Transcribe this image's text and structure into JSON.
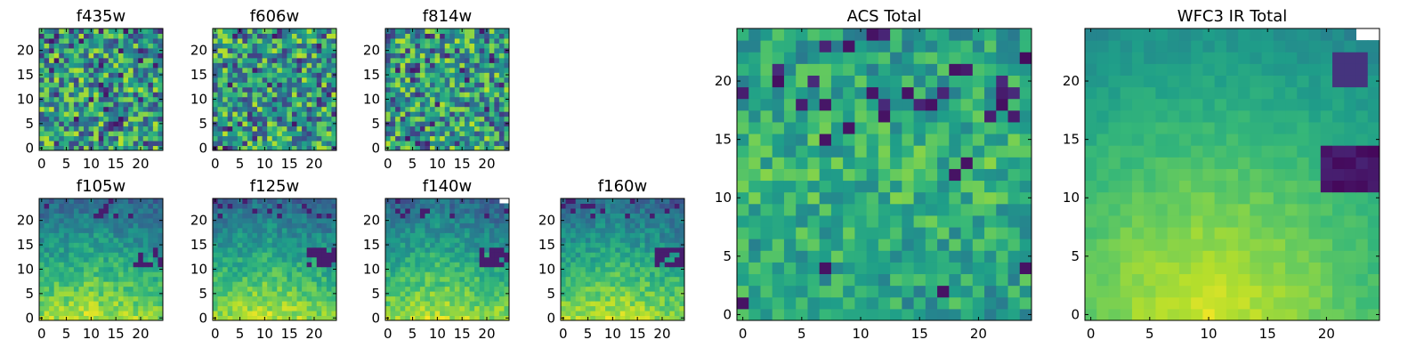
{
  "chart_data": [
    {
      "type": "heatmap",
      "title": "f435w",
      "xlabel": "",
      "ylabel": "",
      "xlim": [
        -0.5,
        24.5
      ],
      "ylim": [
        -0.5,
        24.5
      ],
      "xticks": [
        0,
        5,
        10,
        15,
        20
      ],
      "yticks": [
        0,
        5,
        10,
        15,
        20
      ],
      "colormap": "viridis",
      "pattern": "noise"
    },
    {
      "type": "heatmap",
      "title": "f606w",
      "xlabel": "",
      "ylabel": "",
      "xlim": [
        -0.5,
        24.5
      ],
      "ylim": [
        -0.5,
        24.5
      ],
      "xticks": [
        0,
        5,
        10,
        15,
        20
      ],
      "yticks": [
        0,
        5,
        10,
        15,
        20
      ],
      "colormap": "viridis",
      "pattern": "noise"
    },
    {
      "type": "heatmap",
      "title": "f814w",
      "xlabel": "",
      "ylabel": "",
      "xlim": [
        -0.5,
        24.5
      ],
      "ylim": [
        -0.5,
        24.5
      ],
      "xticks": [
        0,
        5,
        10,
        15,
        20
      ],
      "yticks": [
        0,
        5,
        10,
        15,
        20
      ],
      "colormap": "viridis",
      "pattern": "noise"
    },
    {
      "type": "heatmap",
      "title": "f105w",
      "xlabel": "",
      "ylabel": "",
      "xlim": [
        -0.5,
        24.5
      ],
      "ylim": [
        -0.5,
        24.5
      ],
      "xticks": [
        0,
        5,
        10,
        15,
        20
      ],
      "yticks": [
        0,
        5,
        10,
        15,
        20
      ],
      "colormap": "viridis",
      "pattern": "ir"
    },
    {
      "type": "heatmap",
      "title": "f125w",
      "xlabel": "",
      "ylabel": "",
      "xlim": [
        -0.5,
        24.5
      ],
      "ylim": [
        -0.5,
        24.5
      ],
      "xticks": [
        0,
        5,
        10,
        15,
        20
      ],
      "yticks": [
        0,
        5,
        10,
        15,
        20
      ],
      "colormap": "viridis",
      "pattern": "ir"
    },
    {
      "type": "heatmap",
      "title": "f140w",
      "xlabel": "",
      "ylabel": "",
      "xlim": [
        -0.5,
        24.5
      ],
      "ylim": [
        -0.5,
        24.5
      ],
      "xticks": [
        0,
        5,
        10,
        15,
        20
      ],
      "yticks": [
        0,
        5,
        10,
        15,
        20
      ],
      "colormap": "viridis",
      "pattern": "ir"
    },
    {
      "type": "heatmap",
      "title": "f160w",
      "xlabel": "",
      "ylabel": "",
      "xlim": [
        -0.5,
        24.5
      ],
      "ylim": [
        -0.5,
        24.5
      ],
      "xticks": [
        0,
        5,
        10,
        15,
        20
      ],
      "yticks": [
        0,
        5,
        10,
        15,
        20
      ],
      "colormap": "viridis",
      "pattern": "ir"
    },
    {
      "type": "heatmap",
      "title": "ACS Total",
      "xlabel": "",
      "ylabel": "",
      "xlim": [
        -0.5,
        24.5
      ],
      "ylim": [
        -0.5,
        24.5
      ],
      "xticks": [
        0,
        5,
        10,
        15,
        20
      ],
      "yticks": [
        0,
        5,
        10,
        15,
        20
      ],
      "colormap": "viridis",
      "pattern": "acs"
    },
    {
      "type": "heatmap",
      "title": "WFC3 IR Total",
      "xlabel": "",
      "ylabel": "",
      "xlim": [
        -0.5,
        24.5
      ],
      "ylim": [
        -0.5,
        24.5
      ],
      "xticks": [
        0,
        5,
        10,
        15,
        20
      ],
      "yticks": [
        0,
        5,
        10,
        15,
        20
      ],
      "colormap": "viridis",
      "pattern": "irtotal"
    }
  ]
}
